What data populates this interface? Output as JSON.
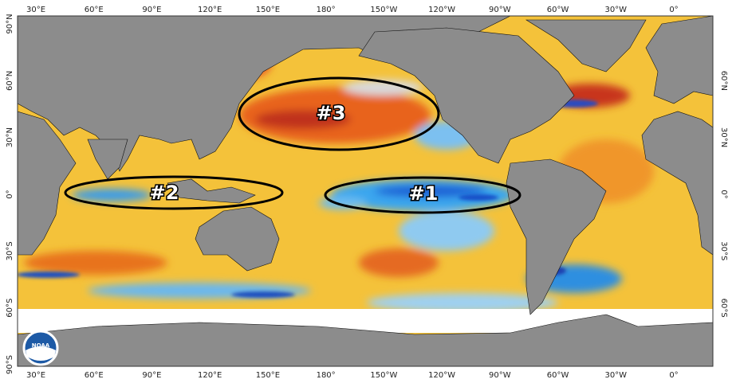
{
  "map": {
    "lon_labels": [
      "30°E",
      "60°E",
      "90°E",
      "120°E",
      "150°E",
      "180°",
      "150°W",
      "120°W",
      "90°W",
      "60°W",
      "30°W",
      "0°"
    ],
    "lat_labels": [
      "90°N",
      "60°N",
      "30°N",
      "0°",
      "30°S",
      "60°S",
      "90°S"
    ],
    "annotations": [
      "#1",
      "#2",
      "#3"
    ],
    "logo": "NOAA"
  }
}
